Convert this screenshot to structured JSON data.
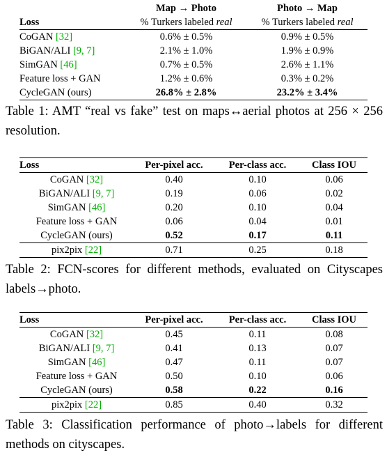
{
  "table1": {
    "group_headers": [
      "Map → Photo",
      "Photo → Map"
    ],
    "col_label": "Loss",
    "sub_prefix": "% Turkers labeled ",
    "sub_suffix": "real",
    "rows": [
      {
        "loss": "CoGAN ",
        "cite": "[32]",
        "a": "0.6% ± 0.5%",
        "b": "0.9% ± 0.5%"
      },
      {
        "loss": "BiGAN/ALI ",
        "cite": "[9, 7]",
        "a": "2.1% ± 1.0%",
        "b": "1.9% ± 0.9%"
      },
      {
        "loss": "SimGAN ",
        "cite": "[46]",
        "a": "0.7% ± 0.5%",
        "b": "2.6% ± 1.1%"
      },
      {
        "loss": "Feature loss + GAN",
        "cite": "",
        "a": "1.2% ± 0.6%",
        "b": "0.3% ± 0.2%"
      },
      {
        "loss": "CycleGAN (ours)",
        "cite": "",
        "a": "26.8% ± 2.8%",
        "b": "23.2% ± 3.4%"
      }
    ],
    "caption": "Table 1: AMT “real vs fake” test on maps↔aerial photos at 256 × 256 resolution."
  },
  "table2": {
    "headers": [
      "Loss",
      "Per-pixel acc.",
      "Per-class acc.",
      "Class IOU"
    ],
    "rows": [
      {
        "loss": "CoGAN ",
        "cite": "[32]",
        "v": [
          "0.40",
          "0.10",
          "0.06"
        ]
      },
      {
        "loss": "BiGAN/ALI ",
        "cite": "[9, 7]",
        "v": [
          "0.19",
          "0.06",
          "0.02"
        ]
      },
      {
        "loss": "SimGAN ",
        "cite": "[46]",
        "v": [
          "0.20",
          "0.10",
          "0.04"
        ]
      },
      {
        "loss": "Feature loss + GAN",
        "cite": "",
        "v": [
          "0.06",
          "0.04",
          "0.01"
        ]
      },
      {
        "loss": "CycleGAN (ours)",
        "cite": "",
        "v": [
          "0.52",
          "0.17",
          "0.11"
        ]
      },
      {
        "loss": "pix2pix ",
        "cite": "[22]",
        "v": [
          "0.71",
          "0.25",
          "0.18"
        ]
      }
    ],
    "caption": "Table 2: FCN-scores for different methods, evaluated on Cityscapes labels→photo."
  },
  "table3": {
    "headers": [
      "Loss",
      "Per-pixel acc.",
      "Per-class acc.",
      "Class IOU"
    ],
    "rows": [
      {
        "loss": "CoGAN ",
        "cite": "[32]",
        "v": [
          "0.45",
          "0.11",
          "0.08"
        ]
      },
      {
        "loss": "BiGAN/ALI ",
        "cite": "[9, 7]",
        "v": [
          "0.41",
          "0.13",
          "0.07"
        ]
      },
      {
        "loss": "SimGAN ",
        "cite": "[46]",
        "v": [
          "0.47",
          "0.11",
          "0.07"
        ]
      },
      {
        "loss": "Feature loss + GAN",
        "cite": "",
        "v": [
          "0.50",
          "0.10",
          "0.06"
        ]
      },
      {
        "loss": "CycleGAN (ours)",
        "cite": "",
        "v": [
          "0.58",
          "0.22",
          "0.16"
        ]
      },
      {
        "loss": "pix2pix ",
        "cite": "[22]",
        "v": [
          "0.85",
          "0.40",
          "0.32"
        ]
      }
    ],
    "caption": "Table 3: Classification performance of photo→labels for different methods on cityscapes."
  },
  "colors": {
    "citation": "#00b000",
    "text": "#000000"
  }
}
